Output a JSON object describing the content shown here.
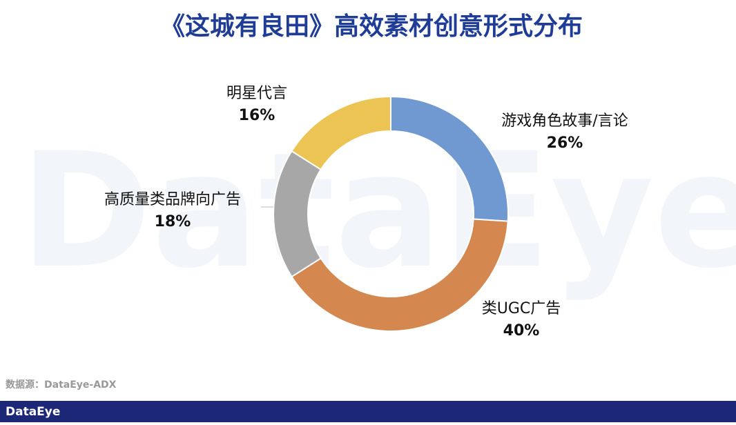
{
  "chart_data": {
    "type": "donut",
    "title": "《这城有良田》高效素材创意形式分布",
    "categories": [
      "游戏角色故事/言论",
      "类UGC广告",
      "高质量类品牌向广告",
      "明星代言"
    ],
    "values": [
      26,
      40,
      18,
      16
    ],
    "value_labels": [
      "26%",
      "40%",
      "18%",
      "16%"
    ],
    "colors": [
      "#7199d1",
      "#d4884f",
      "#a7a7a7",
      "#ecc454"
    ],
    "source": "数据源：DataEye-ADX",
    "watermark": "DataEye",
    "brand": "DataEye"
  }
}
